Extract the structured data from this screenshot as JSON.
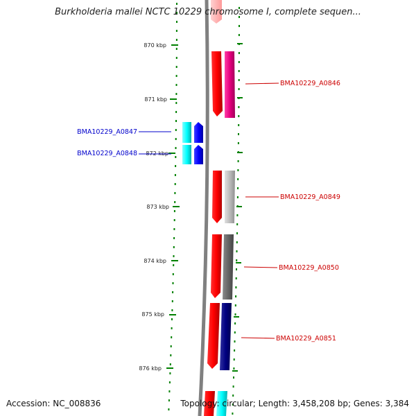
{
  "title": "Burkholderia mallei NCTC 10229 chromosome I, complete sequen...",
  "footer": {
    "accession": "Accession: NC_008836",
    "info": "Topology: circular; Length: 3,458,208 bp; Genes: 3,384"
  },
  "ticks": [
    "870 kbp",
    "871 kbp",
    "872 kbp",
    "873 kbp",
    "874 kbp",
    "875 kbp",
    "876 kbp"
  ],
  "genes": [
    {
      "label": "BMA10229_A0846",
      "side": "right",
      "color": "#e6007e",
      "text_color": "#cc0000"
    },
    {
      "label": "BMA10229_A0847",
      "side": "left",
      "color": "#00ffff",
      "text_color": "#0000cc"
    },
    {
      "label": "BMA10229_A0848",
      "side": "left",
      "color": "#0000ff",
      "text_color": "#0000cc"
    },
    {
      "label": "BMA10229_A0849",
      "side": "right",
      "color": "#bbbbbb",
      "text_color": "#cc0000"
    },
    {
      "label": "BMA10229_A0850",
      "side": "right",
      "color": "#666666",
      "text_color": "#cc0000"
    },
    {
      "label": "BMA10229_A0851",
      "side": "right",
      "color": "#000080",
      "text_color": "#cc0000"
    }
  ],
  "colors": {
    "backbone": "#808080",
    "tick": "#008000",
    "cds": "#ff0000"
  }
}
